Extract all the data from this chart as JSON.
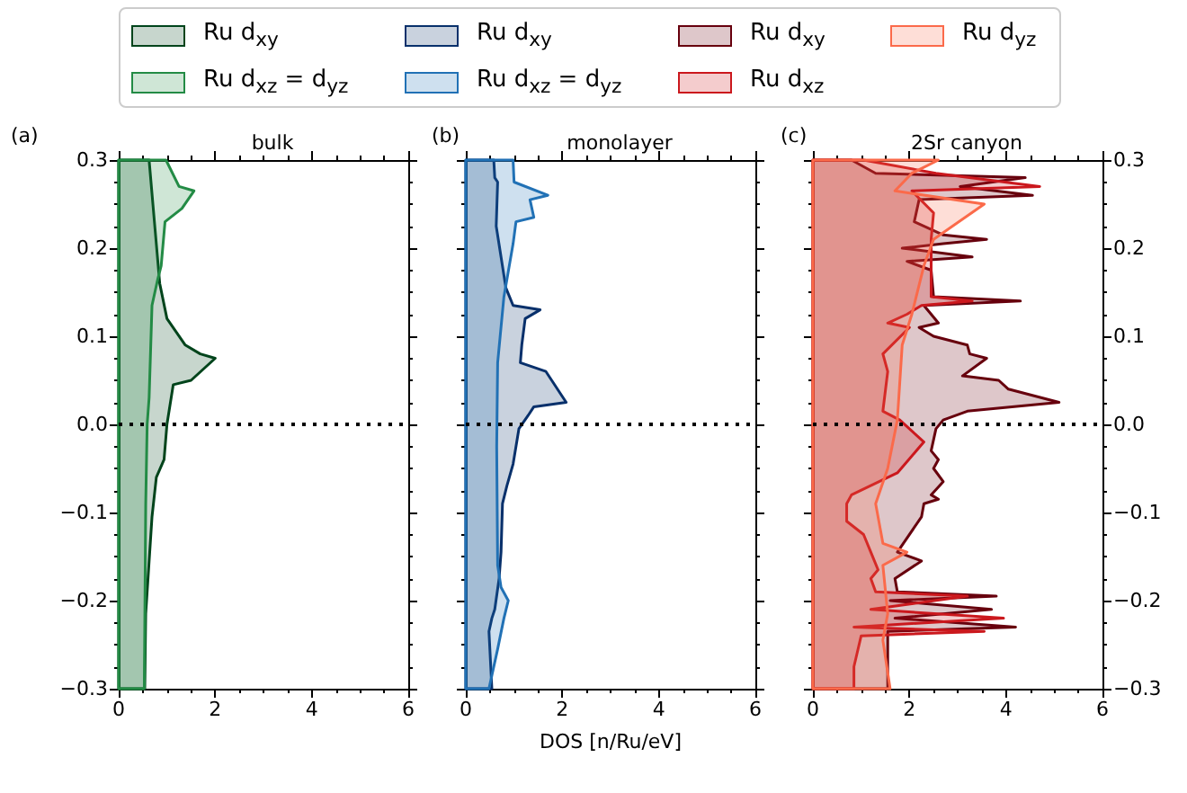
{
  "chart_data": [
    {
      "type": "area",
      "orientation": "horizontal",
      "title": "bulk",
      "annotations": [
        "(a)"
      ],
      "legend": "top",
      "xlim": [
        0,
        6
      ],
      "xticks": [
        0,
        2,
        4,
        6
      ],
      "ylim": [
        -0.3,
        0.3
      ],
      "yticks": [
        {
          "value": -0.3,
          "label": "−0.3"
        },
        {
          "value": -0.2,
          "label": "−0.2"
        },
        {
          "value": -0.1,
          "label": "−0.1"
        },
        {
          "value": 0,
          "label": "0.0"
        },
        0.1,
        0.2,
        0.3
      ],
      "ref_lines": [
        {
          "axis": "y",
          "value": 0,
          "color": "#000000",
          "line_style": "dotted"
        }
      ],
      "series": [
        {
          "name": "Ru d$_{xy}$",
          "color": "#00441b",
          "x": [
            0.3,
            0.16,
            0.12,
            0.09,
            0.08,
            0.075,
            0.05,
            0.045,
            0,
            -0.04,
            -0.06,
            -0.105,
            -0.215,
            -0.3
          ],
          "values": [
            0.63,
            0.85,
            1.0,
            1.38,
            1.69,
            2.0,
            1.5,
            1.13,
            1.0,
            0.94,
            0.78,
            0.69,
            0.56,
            0.54
          ]
        },
        {
          "name": "Ru d$_{xz}$ = d$_{yz}$",
          "color": "#238b45",
          "x": [
            0.3,
            0.27,
            0.265,
            0.245,
            0.23,
            0.18,
            0.165,
            0.135,
            0.03,
            0,
            -0.09,
            -0.3
          ],
          "values": [
            0.98,
            1.25,
            1.56,
            1.31,
            0.96,
            0.88,
            0.81,
            0.69,
            0.63,
            0.59,
            0.56,
            0.53
          ]
        }
      ]
    },
    {
      "type": "area",
      "orientation": "horizontal",
      "title": "monolayer",
      "annotations": [
        "(b)"
      ],
      "legend": "top",
      "xlabel": "DOS [n/Ru/eV]",
      "tick_labels": "x",
      "xlim": [
        0,
        6
      ],
      "xticks": [
        0,
        2,
        4,
        6
      ],
      "ylim": [
        -0.3,
        0.3
      ],
      "yticks": [
        {
          "value": -0.3,
          "label": null
        },
        {
          "value": -0.2,
          "label": null
        },
        {
          "value": -0.1,
          "label": null
        },
        {
          "value": 0,
          "label": null
        },
        {
          "value": 0.1,
          "label": null
        },
        {
          "value": 0.2,
          "label": null
        },
        {
          "value": 0.3,
          "label": null
        }
      ],
      "ref_lines": [
        {
          "axis": "y",
          "value": 0,
          "color": "#000000",
          "line_style": "dotted"
        }
      ],
      "series": [
        {
          "name": "Ru d$_{xy}$",
          "color": "#08306b",
          "x": [
            0.3,
            0.28,
            0.275,
            0.225,
            0.19,
            0.155,
            0.135,
            0.13,
            0.12,
            0.09,
            0.07,
            0.06,
            0.025,
            0.02,
            0.01,
            -0.005,
            -0.045,
            -0.07,
            -0.09,
            -0.145,
            -0.175,
            -0.21,
            -0.22,
            -0.235,
            -0.3
          ],
          "values": [
            0.58,
            0.6,
            0.66,
            0.63,
            0.73,
            0.83,
            0.98,
            1.54,
            1.23,
            1.16,
            1.13,
            1.66,
            2.08,
            1.41,
            1.29,
            1.1,
            0.98,
            0.85,
            0.76,
            0.73,
            0.69,
            0.6,
            0.54,
            0.48,
            0.54
          ]
        },
        {
          "name": "Ru d$_{xz}$ = d$_{yz}$",
          "color": "#2171b5",
          "x": [
            0.3,
            0.275,
            0.26,
            0.255,
            0.235,
            0.23,
            0.205,
            0.145,
            0.07,
            -0.025,
            -0.16,
            -0.185,
            -0.2,
            -0.22,
            -0.255,
            -0.285,
            -0.3
          ],
          "values": [
            0.98,
            1.0,
            1.7,
            1.33,
            1.41,
            1.04,
            0.98,
            0.79,
            0.66,
            0.64,
            0.66,
            0.73,
            0.88,
            0.79,
            0.66,
            0.54,
            0.48
          ]
        }
      ]
    },
    {
      "type": "area",
      "orientation": "horizontal",
      "title": "2Sr canyon",
      "annotations": [
        "(c)"
      ],
      "legend": "top",
      "xlim": [
        0,
        6
      ],
      "xticks": [
        0,
        2,
        4,
        6
      ],
      "ylim": [
        -0.3,
        0.3
      ],
      "yticks": [
        {
          "value": -0.3,
          "label": "−0.3"
        },
        {
          "value": -0.2,
          "label": "−0.2"
        },
        {
          "value": -0.1,
          "label": "−0.1"
        },
        {
          "value": 0,
          "label": "0.0"
        },
        0.1,
        0.2,
        0.3
      ],
      "ref_lines": [
        {
          "axis": "y",
          "value": 0,
          "color": "#000000",
          "line_style": "dotted"
        }
      ],
      "series": [
        {
          "name": "Ru d$_{xy}$",
          "color": "#67000d",
          "x": [
            0.3,
            0.285,
            0.28,
            0.27,
            0.26,
            0.255,
            0.23,
            0.215,
            0.21,
            0.205,
            0.2,
            0.19,
            0.185,
            0.175,
            0.145,
            0.14,
            0.135,
            0.115,
            0.11,
            0.1,
            0.09,
            0.08,
            0.075,
            0.055,
            0.05,
            0.04,
            0.025,
            0.015,
            0.005,
            -0.005,
            -0.03,
            -0.04,
            -0.05,
            -0.065,
            -0.08,
            -0.085,
            -0.09,
            -0.105,
            -0.145,
            -0.155,
            -0.175,
            -0.19,
            -0.195,
            -0.2,
            -0.21,
            -0.22,
            -0.23,
            -0.235,
            -0.3
          ],
          "values": [
            0.8,
            1.3,
            4.4,
            3.05,
            4.55,
            2.2,
            2.1,
            2.7,
            3.6,
            2.7,
            1.85,
            3.3,
            1.95,
            2.45,
            2.5,
            4.3,
            2.3,
            2.6,
            2.2,
            2.5,
            3.2,
            3.25,
            3.6,
            3.1,
            3.85,
            4.05,
            5.1,
            3.2,
            2.7,
            2.55,
            2.45,
            2.6,
            2.5,
            2.7,
            2.45,
            2.6,
            2.3,
            2.25,
            1.75,
            2.25,
            1.7,
            1.75,
            3.8,
            1.6,
            3.7,
            1.7,
            4.2,
            1.55,
            1.55
          ]
        },
        {
          "name": "Ru d$_{xz}$",
          "color": "#cb181d",
          "x": [
            0.3,
            0.285,
            0.27,
            0.265,
            0.24,
            0.21,
            0.195,
            0.145,
            0.14,
            0.135,
            0.125,
            0.115,
            0.11,
            0.08,
            0.06,
            0.015,
            0.005,
            -0.02,
            -0.055,
            -0.08,
            -0.09,
            -0.11,
            -0.125,
            -0.145,
            -0.165,
            -0.175,
            -0.19,
            -0.195,
            -0.21,
            -0.22,
            -0.23,
            -0.235,
            -0.24,
            -0.275,
            -0.3
          ],
          "values": [
            1.05,
            2.55,
            4.7,
            2.05,
            2.5,
            2.45,
            2.45,
            2.45,
            3.3,
            2.25,
            1.95,
            1.55,
            2.0,
            1.45,
            1.55,
            1.45,
            1.8,
            2.3,
            1.75,
            0.8,
            0.7,
            0.7,
            1.05,
            1.2,
            1.35,
            1.2,
            1.3,
            3.2,
            1.2,
            3.95,
            0.85,
            3.55,
            1.0,
            0.85,
            0.85
          ]
        },
        {
          "name": "Ru d$_{yz}$",
          "color": "#fb6a4a",
          "x": [
            0.3,
            0.285,
            0.265,
            0.25,
            0.21,
            0.18,
            0.125,
            0.09,
            0.005,
            -0.05,
            -0.09,
            -0.135,
            -0.145,
            -0.16,
            -0.215,
            -0.245,
            -0.3
          ],
          "values": [
            2.6,
            2.05,
            1.7,
            3.55,
            2.5,
            2.3,
            2.05,
            1.85,
            1.75,
            1.55,
            1.3,
            1.45,
            1.95,
            1.45,
            1.55,
            1.45,
            1.6
          ]
        }
      ]
    }
  ]
}
